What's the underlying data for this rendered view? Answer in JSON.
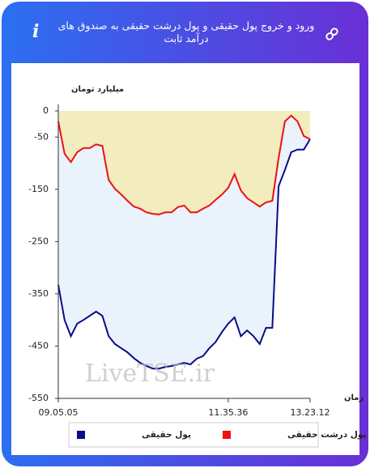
{
  "header": {
    "title": "ورود و خروج پول حقیقی و پول درشت حقیقی به صندوق های درآمد ثابت",
    "info": "i"
  },
  "chart_data": {
    "type": "line",
    "y_label": "میلیارد تومان",
    "x_label": "زمان",
    "watermark": "LiveTSE.ir",
    "categories": [
      "09.05.05",
      null,
      null,
      null,
      null,
      null,
      null,
      null,
      null,
      null,
      null,
      null,
      null,
      null,
      null,
      null,
      null,
      null,
      null,
      null,
      null,
      null,
      null,
      null,
      null,
      null,
      null,
      "11.35.36",
      null,
      null,
      null,
      null,
      null,
      null,
      null,
      null,
      null,
      null,
      null,
      null,
      "13.23.12"
    ],
    "series": [
      {
        "name": "پول حقیقی",
        "color": "#0b0b8a",
        "fill": "#eaf3fb",
        "values": [
          -333,
          -400,
          -431,
          -407,
          -400,
          -392,
          -384,
          -392,
          -431,
          -446,
          -454,
          -462,
          -473,
          -482,
          -488,
          -493,
          -493,
          -490,
          -488,
          -485,
          -482,
          -485,
          -474,
          -469,
          -454,
          -442,
          -423,
          -407,
          -395,
          -431,
          -420,
          -431,
          -446,
          -415,
          -415,
          -144,
          -113,
          -79,
          -74,
          -74,
          -54
        ]
      },
      {
        "name": "پول درشت حقیقی",
        "color": "#ee1111",
        "fill": "#f2ecbf",
        "values": [
          -20,
          -82,
          -98,
          -79,
          -71,
          -71,
          -64,
          -67,
          -132,
          -149,
          -160,
          -172,
          -183,
          -187,
          -194,
          -197,
          -198,
          -194,
          -194,
          -184,
          -181,
          -194,
          -194,
          -187,
          -181,
          -170,
          -160,
          -147,
          -121,
          -152,
          -167,
          -175,
          -183,
          -175,
          -172,
          -90,
          -20,
          -9,
          -20,
          -48,
          -54
        ]
      }
    ],
    "ylim": [
      -550,
      0
    ],
    "yticks": [
      0,
      -50,
      -150,
      -250,
      -350,
      -450,
      -550
    ],
    "grid": false
  }
}
